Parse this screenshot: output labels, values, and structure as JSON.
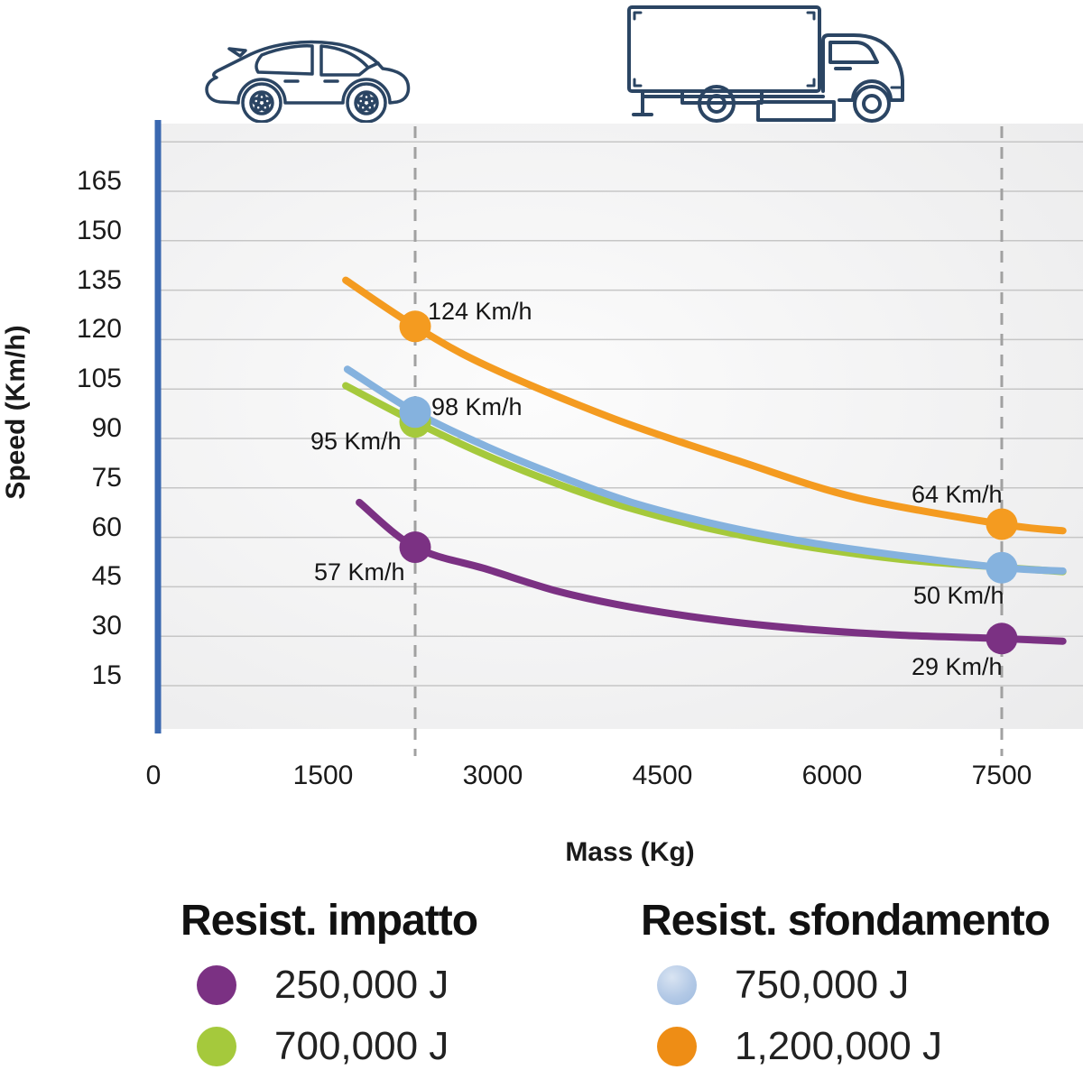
{
  "chart_data": {
    "type": "line",
    "title": "",
    "xlabel": "Mass (Kg)",
    "ylabel": "Speed (Km/h)",
    "x_ticks": [
      0,
      1500,
      3000,
      4500,
      6000,
      7500
    ],
    "y_ticks": [
      15,
      30,
      45,
      60,
      75,
      90,
      105,
      120,
      135,
      150,
      165
    ],
    "xlim": [
      0,
      8200
    ],
    "ylim": [
      0,
      180
    ],
    "grid": "horizontal",
    "legend_position": "bottom",
    "reference_masses_kg": [
      2314,
      7500
    ],
    "series": [
      {
        "name": "700,000 J",
        "group": "Resist. impatto",
        "energy_joules": 700000,
        "color": "#a5c93c",
        "samples_mass_speed": [
          [
            1700,
            106
          ],
          [
            2314,
            95
          ],
          [
            2950,
            84.8
          ],
          [
            3590,
            76
          ],
          [
            4230,
            68.7
          ],
          [
            5030,
            61.8
          ],
          [
            5825,
            56.9
          ],
          [
            6620,
            53.3
          ],
          [
            7420,
            51.1
          ],
          [
            8040,
            49.6
          ]
        ],
        "points": [
          {
            "mass": 2314,
            "speed_kmh": 95,
            "label": "95 Km/h",
            "dx": -116,
            "dy": 6
          }
        ]
      },
      {
        "name": "750,000 J",
        "group": "Resist. sfondamento",
        "energy_joules": 750000,
        "color": "#85b2de",
        "samples_mass_speed": [
          [
            1715,
            111
          ],
          [
            2314,
            98
          ],
          [
            2950,
            87.5
          ],
          [
            3590,
            78.5
          ],
          [
            4230,
            70.6
          ],
          [
            5030,
            63.5
          ],
          [
            5825,
            58.3
          ],
          [
            6620,
            54.4
          ],
          [
            7500,
            50.8
          ],
          [
            8040,
            49.8
          ]
        ],
        "points": [
          {
            "mass": 2314,
            "speed_kmh": 98,
            "label": "98 Km/h",
            "dx": 18,
            "dy": -21
          },
          {
            "mass": 7500,
            "speed_kmh": 50,
            "label": "50 Km/h",
            "dx": -98,
            "dy": 16
          }
        ]
      },
      {
        "name": "250,000 J",
        "group": "Resist. impatto",
        "energy_joules": 250000,
        "color": "#7b3183",
        "samples_mass_speed": [
          [
            1820,
            70.6
          ],
          [
            2314,
            57
          ],
          [
            2950,
            50.3
          ],
          [
            3590,
            43.5
          ],
          [
            4230,
            38.8
          ],
          [
            5030,
            34.7
          ],
          [
            5825,
            32
          ],
          [
            6620,
            30.3
          ],
          [
            7500,
            29.3
          ],
          [
            8040,
            28.5
          ]
        ],
        "points": [
          {
            "mass": 2314,
            "speed_kmh": 57,
            "label": "57 Km/h",
            "dx": -112,
            "dy": 12
          },
          {
            "mass": 7500,
            "speed_kmh": 29,
            "label": "29 Km/h",
            "dx": -100,
            "dy": 16
          }
        ]
      },
      {
        "name": "1,200,000 J",
        "group": "Resist. sfondamento",
        "energy_joules": 1200000,
        "color": "#f49b20",
        "samples_mass_speed": [
          [
            1700,
            138
          ],
          [
            2314,
            124
          ],
          [
            2950,
            112
          ],
          [
            4070,
            96
          ],
          [
            5190,
            83
          ],
          [
            6220,
            72
          ],
          [
            7500,
            64
          ],
          [
            8040,
            62
          ]
        ],
        "points": [
          {
            "mass": 2314,
            "speed_kmh": 124,
            "label": "124 Km/h",
            "dx": 14,
            "dy": -32
          },
          {
            "mass": 7500,
            "speed_kmh": 64,
            "label": "64 Km/h",
            "dx": -100,
            "dy": -48
          }
        ]
      }
    ]
  },
  "legend": {
    "groups": [
      {
        "title": "Resist. impatto",
        "items": [
          {
            "label": "250,000 J",
            "color": "#7b3183",
            "gradient": false
          },
          {
            "label": "700,000 J",
            "color": "#a5c93c",
            "gradient": false
          }
        ]
      },
      {
        "title": "Resist. sfondamento",
        "items": [
          {
            "label": "750,000 J",
            "color": "#a9c4e4",
            "gradient": true
          },
          {
            "label": "1,200,000 J",
            "color": "#ee8d15",
            "gradient": false
          }
        ]
      }
    ]
  },
  "icons": [
    "car-icon",
    "truck-icon"
  ],
  "colors": {
    "axis_blue": "#3a68b0",
    "axis_blue_light": "#9fb0da",
    "gridline": "#c6c6c6",
    "dashed_line": "#a1a1a1",
    "icon_outline": "#2b4563",
    "text": "#1a1a1a",
    "plot_bg_center": "#fcfcfc",
    "plot_bg_edge": "#ebebec"
  }
}
